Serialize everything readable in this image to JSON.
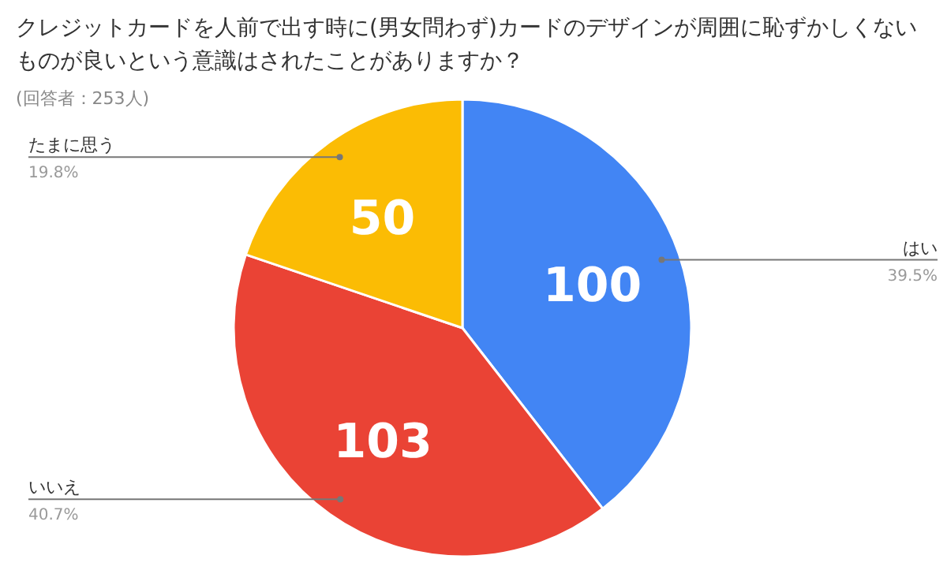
{
  "chart_data": {
    "type": "pie",
    "title": "クレジットカードを人前で出す時に(男女問わず)カードのデザインが周囲に恥ずかしくないものが良いという意識はされたことがありますか？",
    "subtitle": "(回答者：253人)",
    "categories": [
      "はい",
      "いいえ",
      "たまに思う"
    ],
    "values": [
      39.5,
      40.7,
      19.8
    ],
    "colors": [
      "#4285f4",
      "#ea4335",
      "#fbbc04"
    ],
    "value_labels": [
      "39.5%",
      "40.7%",
      "19.8%"
    ],
    "annotations": [
      {
        "text": "100",
        "x": "はい"
      },
      {
        "text": "103",
        "x": "いいえ"
      },
      {
        "text": "50",
        "x": "たまに思う"
      }
    ]
  }
}
